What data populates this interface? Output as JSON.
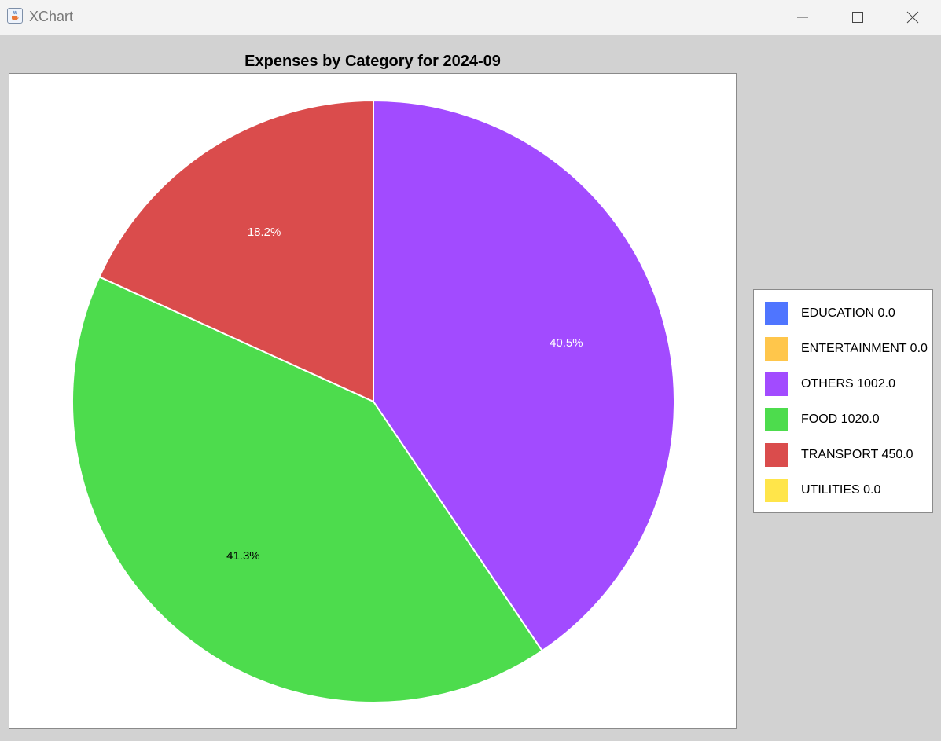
{
  "window": {
    "title": "XChart",
    "icon": "java-cup-icon",
    "controls": [
      "minimize-icon",
      "maximize-icon",
      "close-icon"
    ]
  },
  "chart_data": {
    "type": "pie",
    "title": "Expenses by Category for 2024-09",
    "legend_position": "right",
    "start_angle_deg": 90,
    "direction": "clockwise",
    "series": [
      {
        "name": "EDUCATION",
        "value": 0.0,
        "legend_label": "EDUCATION 0.0",
        "color": "#4f75ff"
      },
      {
        "name": "ENTERTAINMENT",
        "value": 0.0,
        "legend_label": "ENTERTAINMENT 0.0",
        "color": "#ffc64b"
      },
      {
        "name": "OTHERS",
        "value": 1002.0,
        "legend_label": "OTHERS 1002.0",
        "color": "#a24bff",
        "percent_label": "40.5%",
        "label_color": "#ffffff"
      },
      {
        "name": "FOOD",
        "value": 1020.0,
        "legend_label": "FOOD 1020.0",
        "color": "#4ddc4d",
        "percent_label": "41.3%",
        "label_color": "#000000"
      },
      {
        "name": "TRANSPORT",
        "value": 450.0,
        "legend_label": "TRANSPORT 450.0",
        "color": "#da4c4c",
        "percent_label": "18.2%",
        "label_color": "#ffffff"
      },
      {
        "name": "UTILITIES",
        "value": 0.0,
        "legend_label": "UTILITIES 0.0",
        "color": "#ffe54a"
      }
    ]
  }
}
